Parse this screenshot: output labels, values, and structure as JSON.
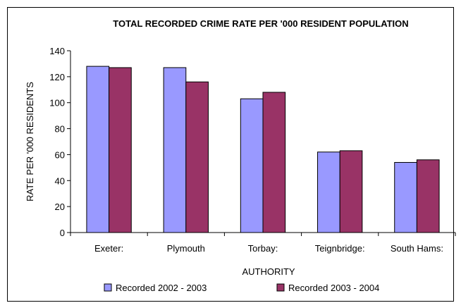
{
  "chart_data": {
    "type": "bar",
    "title": "TOTAL RECORDED CRIME RATE PER '000 RESIDENT POPULATION",
    "xlabel": "AUTHORITY",
    "ylabel": "RATE PER '000 RESIDENTS",
    "categories": [
      "Exeter:",
      "Plymouth",
      "Torbay:",
      "Teignbridge:",
      "South Hams:"
    ],
    "ylim": [
      0,
      140
    ],
    "yticks": [
      0,
      20,
      40,
      60,
      80,
      100,
      120,
      140
    ],
    "grid": false,
    "legend_position": "bottom",
    "series": [
      {
        "name": "Recorded 2002 - 2003",
        "color": "#9999FF",
        "values": [
          128,
          127,
          103,
          62,
          54
        ]
      },
      {
        "name": "Recorded 2003 - 2004",
        "color": "#993366",
        "values": [
          127,
          116,
          108,
          63,
          56
        ]
      }
    ]
  }
}
